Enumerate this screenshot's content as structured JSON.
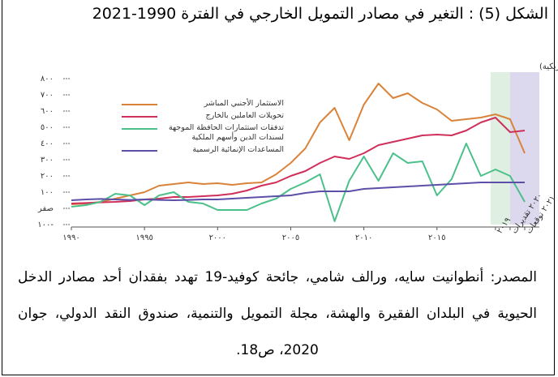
{
  "title": "الشكل (5) : التغير في مصادر التمويل الخارجي في الفترة 1990-2021",
  "chart_data": {
    "type": "line",
    "subtitle": "(بمليارات الدولارات الأمريكية)",
    "x": [
      1990,
      1991,
      1992,
      1993,
      1994,
      1995,
      1996,
      1997,
      1998,
      1999,
      2000,
      2001,
      2002,
      2003,
      2004,
      2005,
      2006,
      2007,
      2008,
      2009,
      2010,
      2011,
      2012,
      2013,
      2014,
      2015,
      2016,
      2017,
      2018,
      2019,
      2020,
      2021
    ],
    "xlim": [
      1990,
      2022
    ],
    "xticks": [
      {
        "value": 1990,
        "label": "١٩٩٠"
      },
      {
        "value": 1995,
        "label": "١٩٩٥"
      },
      {
        "value": 2000,
        "label": "٢٠٠٠"
      },
      {
        "value": 2005,
        "label": "٢٠٠٥"
      },
      {
        "value": 2010,
        "label": "٢٠١٠"
      },
      {
        "value": 2015,
        "label": "٢٠١٥"
      },
      {
        "value": 2019,
        "label": "٢٠١٩"
      },
      {
        "value": 2020,
        "label": "٢٠٢٠ تقديرات"
      },
      {
        "value": 2021,
        "label": "٢٠٢١ توقعات"
      }
    ],
    "ylim": [
      -100,
      800
    ],
    "yticks": [
      {
        "value": -100,
        "label": "١٠٠-"
      },
      {
        "value": 0,
        "label": "صفر"
      },
      {
        "value": 100,
        "label": "١٠٠"
      },
      {
        "value": 200,
        "label": "٢٠٠"
      },
      {
        "value": 300,
        "label": "٣٠٠"
      },
      {
        "value": 400,
        "label": "٤٠٠"
      },
      {
        "value": 500,
        "label": "٥٠٠"
      },
      {
        "value": 600,
        "label": "٦٠٠"
      },
      {
        "value": 700,
        "label": "٧٠٠"
      },
      {
        "value": 800,
        "label": "٨٠٠"
      }
    ],
    "series": [
      {
        "name": "الاستثمار الأجنبي المباشر",
        "color": "#d9833a",
        "values": [
          25,
          30,
          40,
          60,
          80,
          100,
          140,
          150,
          160,
          150,
          155,
          145,
          155,
          160,
          210,
          280,
          370,
          530,
          620,
          420,
          640,
          770,
          680,
          710,
          650,
          610,
          540,
          550,
          560,
          580,
          550,
          340
        ]
      },
      {
        "name": "تحويلات العاملين بالخارج",
        "color": "#cf2f5a",
        "values": [
          30,
          33,
          37,
          40,
          45,
          55,
          60,
          70,
          70,
          75,
          80,
          90,
          110,
          140,
          160,
          200,
          230,
          280,
          320,
          305,
          340,
          390,
          410,
          430,
          450,
          455,
          450,
          480,
          530,
          560,
          470,
          480
        ]
      },
      {
        "name": "تدفقات استثمارات الحافظة الموجهة لسندات الدين وأسهم الملكية",
        "color": "#4cc08a",
        "values": [
          10,
          20,
          40,
          90,
          80,
          20,
          80,
          100,
          40,
          30,
          -10,
          -10,
          -10,
          30,
          60,
          120,
          160,
          210,
          -80,
          170,
          320,
          170,
          340,
          280,
          290,
          80,
          180,
          400,
          200,
          240,
          200,
          40
        ]
      },
      {
        "name": "المساعدات الإنمائية الرسمية",
        "color": "#5b4fa8",
        "values": [
          50,
          55,
          58,
          55,
          52,
          55,
          52,
          50,
          52,
          55,
          55,
          60,
          65,
          70,
          75,
          80,
          95,
          105,
          105,
          105,
          120,
          125,
          130,
          135,
          140,
          145,
          150,
          155,
          160,
          160,
          160,
          160
        ]
      }
    ]
  },
  "source": "المصدر: أنطوانيت سايه، ورالف شامي، جائحة كوفيد-19 تهدد بفقدان أحد مصادر الدخل الحيوية في البلدان الفقيرة والهشة، مجلة التمويل والتنمية، صندوق النقد الدولي، جوان 2020، ص18."
}
